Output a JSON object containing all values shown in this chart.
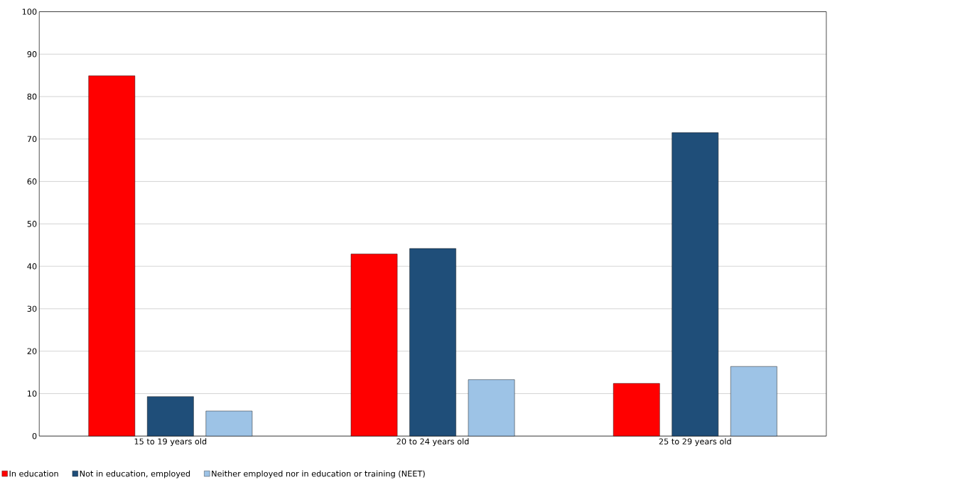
{
  "chart_data": {
    "type": "bar",
    "categories": [
      "15 to 19 years old",
      "20 to 24 years old",
      "25 to 29 years old"
    ],
    "series": [
      {
        "name": "In education",
        "color": "#ff0000",
        "values": [
          84.9,
          42.9,
          12.4
        ]
      },
      {
        "name": "Not in education, employed",
        "color": "#1f4e79",
        "values": [
          9.3,
          44.2,
          71.5
        ]
      },
      {
        "name": "Neither employed nor in education or training (NEET)",
        "color": "#9dc3e6",
        "values": [
          5.9,
          13.3,
          16.4
        ]
      }
    ],
    "ylim": [
      0,
      100
    ],
    "yticks": [
      0,
      10,
      20,
      30,
      40,
      50,
      60,
      70,
      80,
      90,
      100
    ],
    "grid": "y",
    "legend": "bottom left"
  }
}
